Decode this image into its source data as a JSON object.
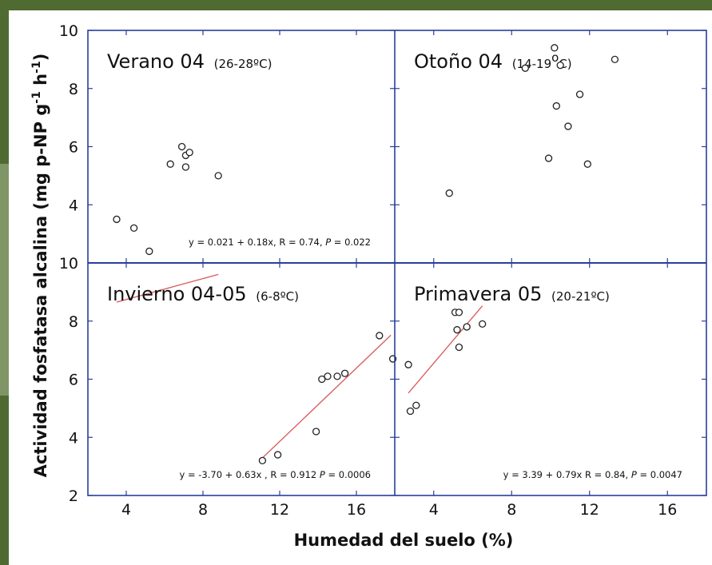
{
  "chart_data": {
    "type": "scatter",
    "xlabel": "Humedad del suelo (%)",
    "ylabel": "Actividad fosfatasa alcalina (mg p-NP g-1 h-1)",
    "xlim": [
      2,
      18
    ],
    "ylim": [
      2,
      10
    ],
    "x_ticks": [
      "4",
      "8",
      "12",
      "16"
    ],
    "y_ticks": [
      "2",
      "4",
      "6",
      "8",
      "10"
    ],
    "panels": [
      {
        "id": "verano",
        "title": "Verano 04",
        "subtitle": "(26-28ºC)",
        "points": [
          [
            3.5,
            3.5
          ],
          [
            4.4,
            3.2
          ],
          [
            5.2,
            2.4
          ],
          [
            6.3,
            5.4
          ],
          [
            6.9,
            6.0
          ],
          [
            7.1,
            5.7
          ],
          [
            7.3,
            5.8
          ],
          [
            7.1,
            5.3
          ],
          [
            8.8,
            5.0
          ]
        ],
        "fit": {
          "intercept": 0.021,
          "slope": 0.18,
          "x_range": [
            3.5,
            8.8
          ]
        },
        "equation": {
          "lead": "y = 0.021  + 0.18x, R = 0.74, ",
          "p_label": "P",
          "tail": " = 0.022"
        }
      },
      {
        "id": "otono",
        "title": "Otoño 04",
        "subtitle": "(14-19",
        "subtitle_sup": "o",
        "subtitle_end": "C)",
        "points": [
          [
            4.8,
            4.4
          ],
          [
            8.7,
            8.7
          ],
          [
            10.2,
            9.4
          ],
          [
            10.5,
            8.8
          ],
          [
            10.3,
            7.4
          ],
          [
            11.5,
            7.8
          ],
          [
            10.9,
            6.7
          ],
          [
            9.9,
            5.6
          ],
          [
            11.9,
            5.4
          ],
          [
            13.3,
            9.0
          ]
        ],
        "fit": null,
        "equation": null
      },
      {
        "id": "invierno",
        "title": "Invierno 04-05",
        "subtitle": "(6-8ºC)",
        "points": [
          [
            11.1,
            3.2
          ],
          [
            11.9,
            3.4
          ],
          [
            13.9,
            4.2
          ],
          [
            14.2,
            6.0
          ],
          [
            14.5,
            6.1
          ],
          [
            15.0,
            6.1
          ],
          [
            15.4,
            6.2
          ],
          [
            17.2,
            7.5
          ],
          [
            17.9,
            6.7
          ]
        ],
        "fit": {
          "intercept": -3.7,
          "slope": 0.63,
          "x_range": [
            11.1,
            17.8
          ]
        },
        "equation": {
          "lead": "y = -3.70 + 0.63x , R = 0.912 ",
          "p_label": "P",
          "tail": " = 0.0006"
        }
      },
      {
        "id": "primavera",
        "title": "Primavera 05",
        "subtitle": "(20-21ºC)",
        "points": [
          [
            2.7,
            6.5
          ],
          [
            2.8,
            4.9
          ],
          [
            3.1,
            5.1
          ],
          [
            5.1,
            8.3
          ],
          [
            5.3,
            8.3
          ],
          [
            5.2,
            7.7
          ],
          [
            5.7,
            7.8
          ],
          [
            6.5,
            7.9
          ],
          [
            5.3,
            7.1
          ]
        ],
        "fit": {
          "intercept": 3.39,
          "slope": 0.79,
          "x_range": [
            2.7,
            6.5
          ]
        },
        "equation": {
          "lead": "y = 3.39 + 0.79x R = 0.84, ",
          "p_label": "P",
          "tail": " = 0.0047"
        }
      }
    ]
  },
  "colors": {
    "frame": "#4f6b32",
    "frame_light": "#7f9566",
    "axis": "#2a3f9a",
    "fit_line": "#d86060",
    "marker": "#222222"
  }
}
